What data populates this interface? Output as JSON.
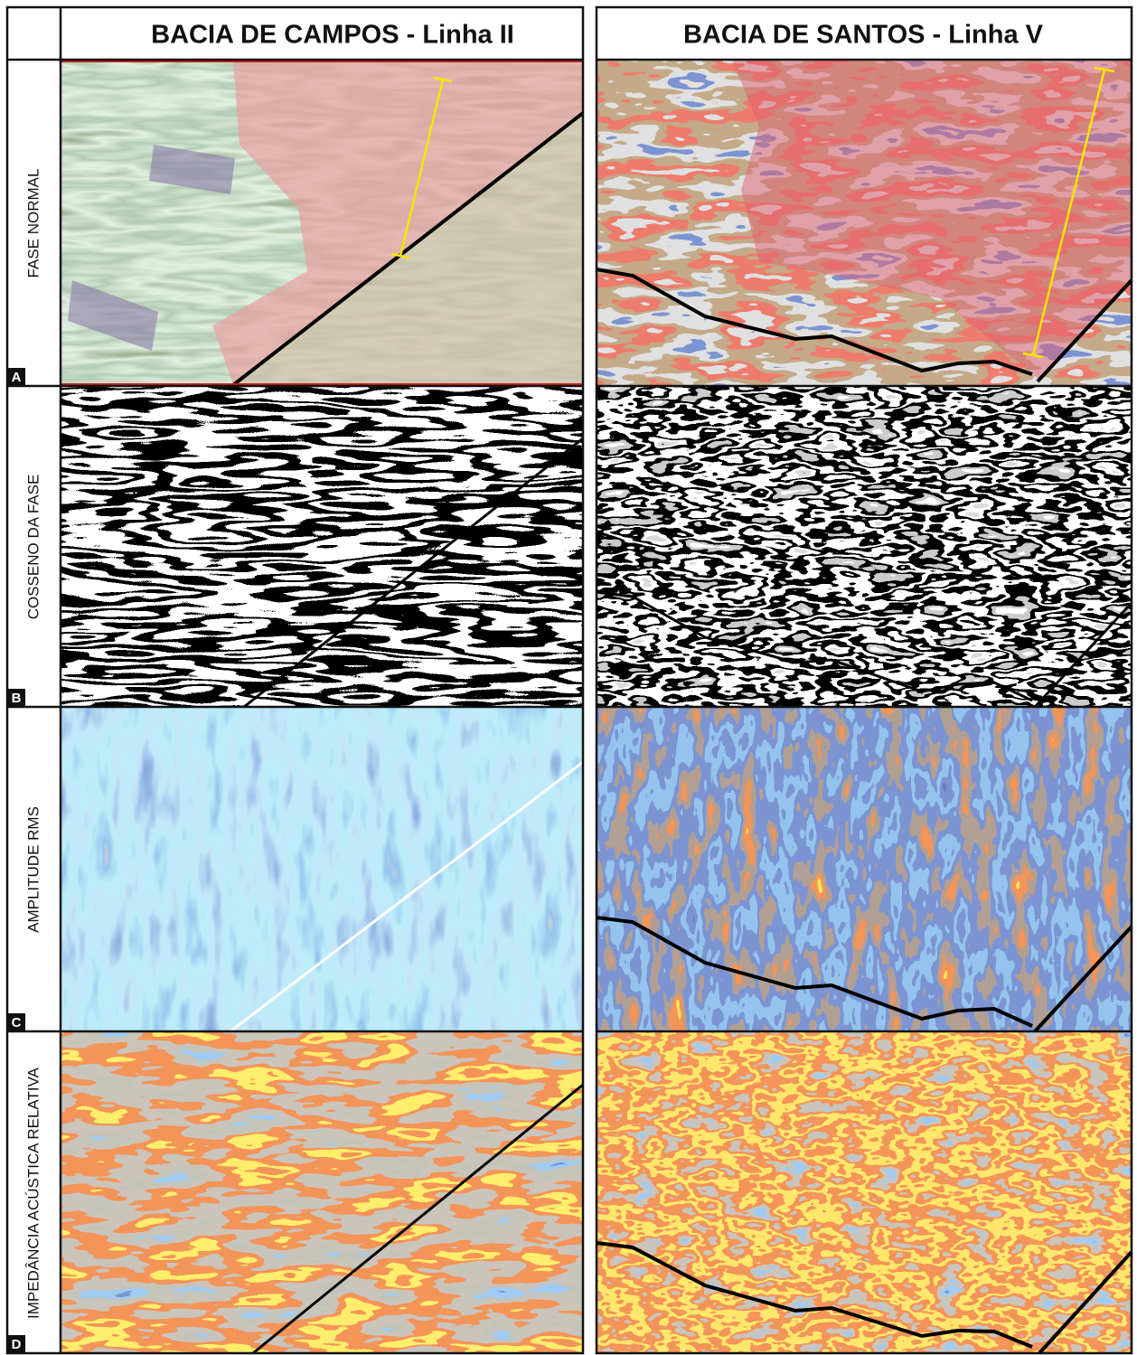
{
  "header": {
    "columns": [
      "BACIA DE CAMPOS - Linha II",
      "BACIA DE SANTOS - Linha V"
    ]
  },
  "rows": [
    {
      "letter": "A",
      "label": "FASE NORMAL"
    },
    {
      "letter": "B",
      "label": "COSSENO DA FASE"
    },
    {
      "letter": "C",
      "label": "AMPLITUDE RMS"
    },
    {
      "letter": "D",
      "label": "IMPEDÂNCIA ACÚSTICA RELATIVA"
    }
  ]
}
